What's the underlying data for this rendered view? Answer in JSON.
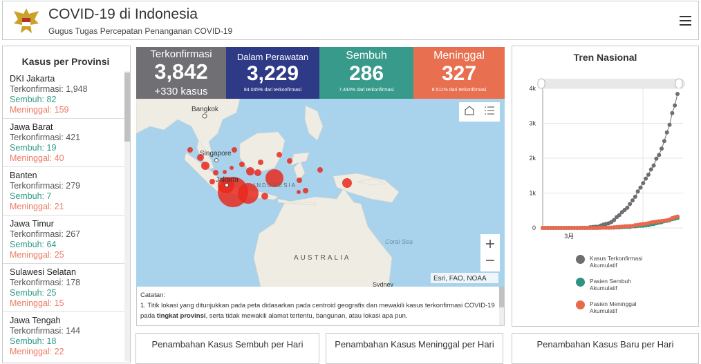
{
  "header": {
    "title": "COVID-19 di Indonesia",
    "subtitle": "Gugus Tugas Percepatan Penanganan COVID-19"
  },
  "provinces": {
    "title": "Kasus per Provinsi",
    "items": [
      {
        "name": "DKI Jakarta",
        "confirmed": "Terkonfirmasi: 1,948",
        "recovered": "Sembuh: 82",
        "deaths": "Meninggal: 159"
      },
      {
        "name": "Jawa Barat",
        "confirmed": "Terkonfirmasi: 421",
        "recovered": "Sembuh: 19",
        "deaths": "Meninggal: 40"
      },
      {
        "name": "Banten",
        "confirmed": "Terkonfirmasi: 279",
        "recovered": "Sembuh: 7",
        "deaths": "Meninggal: 21"
      },
      {
        "name": "Jawa Timur",
        "confirmed": "Terkonfirmasi: 267",
        "recovered": "Sembuh: 64",
        "deaths": "Meninggal: 25"
      },
      {
        "name": "Sulawesi Selatan",
        "confirmed": "Terkonfirmasi: 178",
        "recovered": "Sembuh: 25",
        "deaths": "Meninggal: 15"
      },
      {
        "name": "Jawa Tengah",
        "confirmed": "Terkonfirmasi: 144",
        "recovered": "Sembuh: 18",
        "deaths": "Meninggal: 22"
      }
    ]
  },
  "stats": [
    {
      "label": "Terkonfirmasi",
      "value": "3,842",
      "sub": "+330 kasus"
    },
    {
      "label": "Dalam Perawatan",
      "value": "3,229",
      "sub": "84.045% dari terkonfirmasi"
    },
    {
      "label": "Sembuh",
      "value": "286",
      "sub": "7.444% dari terkonfirmasi"
    },
    {
      "label": "Meninggal",
      "value": "327",
      "sub": "8.511% dari terkonfirmasi"
    }
  ],
  "map": {
    "labels": [
      "Bangkok",
      "Singapore",
      "Jakarta",
      "INDONESIA",
      "AUSTRALIA",
      "Coral Sea",
      "Sydney"
    ],
    "attribution": "Esri, FAO, NOAA"
  },
  "note": {
    "title": "Catatan:",
    "before": "1. Titik lokasi yang ditunjukkan pada peta didasarkan pada centroid geografis dan mewakili kasus terkonfirmasi COVID-19 pada ",
    "bold": "tingkat provinsi",
    "after": ", serta tidak mewakili alamat tertentu, bangunan, atau lokasi apa pun."
  },
  "trend": {
    "type": "line",
    "title": "Tren Nasional",
    "categories": [
      null,
      null,
      null,
      null,
      null,
      null,
      null,
      null,
      null,
      null,
      "3月",
      null,
      null,
      null,
      null,
      null,
      null,
      null,
      null,
      null,
      null,
      null,
      null,
      null,
      null,
      null,
      null,
      null,
      null,
      null,
      null,
      null,
      null,
      null,
      null,
      null,
      null,
      null,
      null,
      null,
      null,
      null,
      null,
      null,
      null,
      null,
      null,
      null,
      null,
      null,
      null,
      null
    ],
    "series": [
      {
        "name": "Kasus Terkonfirmasi Akumulatif",
        "color": "#6d6d72",
        "values": [
          0,
          0,
          0,
          0,
          0,
          0,
          0,
          0,
          0,
          0,
          0,
          2,
          2,
          2,
          2,
          4,
          4,
          6,
          19,
          27,
          34,
          34,
          69,
          96,
          117,
          134,
          172,
          227,
          311,
          369,
          450,
          514,
          579,
          686,
          790,
          893,
          1046,
          1155,
          1285,
          1414,
          1528,
          1677,
          1790,
          1986,
          2092,
          2273,
          2491,
          2738,
          2956,
          3293,
          3512,
          3842
        ]
      },
      {
        "name": "Pasien Sembuh Akumulatif",
        "color": "#2f9383",
        "values": [
          0,
          0,
          0,
          0,
          0,
          0,
          0,
          0,
          0,
          0,
          0,
          0,
          0,
          0,
          0,
          0,
          0,
          0,
          0,
          2,
          2,
          3,
          5,
          8,
          8,
          8,
          9,
          11,
          15,
          15,
          20,
          29,
          30,
          30,
          46,
          46,
          59,
          64,
          64,
          75,
          81,
          103,
          112,
          134,
          150,
          164,
          192,
          204,
          222,
          252,
          268,
          286
        ]
      },
      {
        "name": "Pasien Meninggal Akumulatif",
        "color": "#e8694b",
        "values": [
          0,
          0,
          0,
          0,
          0,
          0,
          0,
          0,
          0,
          0,
          0,
          0,
          0,
          0,
          0,
          0,
          0,
          0,
          0,
          0,
          1,
          1,
          4,
          5,
          5,
          5,
          7,
          19,
          25,
          32,
          38,
          48,
          49,
          55,
          58,
          78,
          87,
          102,
          114,
          122,
          136,
          157,
          170,
          181,
          191,
          198,
          209,
          221,
          240,
          280,
          306,
          327
        ]
      }
    ],
    "ylim": [
      0,
      4000
    ],
    "yticks": [
      0,
      {
        "value": 1000,
        "label": "1k"
      },
      {
        "value": 2000,
        "label": "2k"
      },
      {
        "value": 3000,
        "label": "3k"
      },
      {
        "value": 4000,
        "label": "4k"
      }
    ]
  },
  "panels": [
    "Penambahan Kasus Sembuh per Hari",
    "Penambahan Kasus Meninggal per Hari",
    "Penambahan Kasus Baru per Hari"
  ]
}
